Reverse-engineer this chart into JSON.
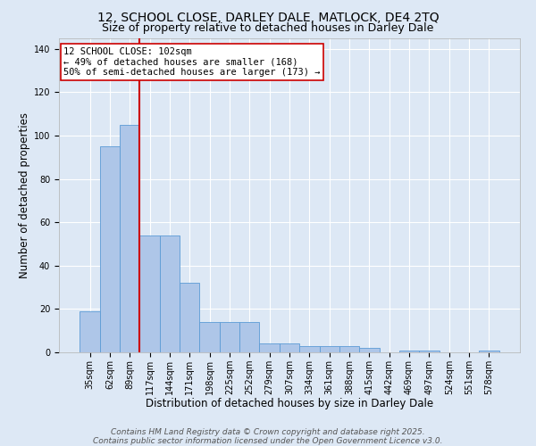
{
  "title_line1": "12, SCHOOL CLOSE, DARLEY DALE, MATLOCK, DE4 2TQ",
  "title_line2": "Size of property relative to detached houses in Darley Dale",
  "xlabel": "Distribution of detached houses by size in Darley Dale",
  "ylabel": "Number of detached properties",
  "categories": [
    "35sqm",
    "62sqm",
    "89sqm",
    "117sqm",
    "144sqm",
    "171sqm",
    "198sqm",
    "225sqm",
    "252sqm",
    "279sqm",
    "307sqm",
    "334sqm",
    "361sqm",
    "388sqm",
    "415sqm",
    "442sqm",
    "469sqm",
    "497sqm",
    "524sqm",
    "551sqm",
    "578sqm"
  ],
  "values": [
    19,
    95,
    105,
    54,
    54,
    32,
    14,
    14,
    14,
    4,
    4,
    3,
    3,
    3,
    2,
    0,
    1,
    1,
    0,
    0,
    1
  ],
  "bar_color": "#aec6e8",
  "bar_edge_color": "#5b9bd5",
  "bar_width": 1.0,
  "vline_x": 2.5,
  "vline_color": "#cc0000",
  "annotation_text": "12 SCHOOL CLOSE: 102sqm\n← 49% of detached houses are smaller (168)\n50% of semi-detached houses are larger (173) →",
  "annotation_box_color": "#ffffff",
  "annotation_box_edge": "#cc0000",
  "ylim": [
    0,
    145
  ],
  "yticks": [
    0,
    20,
    40,
    60,
    80,
    100,
    120,
    140
  ],
  "background_color": "#dde8f5",
  "grid_color": "#ffffff",
  "footer_line1": "Contains HM Land Registry data © Crown copyright and database right 2025.",
  "footer_line2": "Contains public sector information licensed under the Open Government Licence v3.0.",
  "title_fontsize": 10,
  "subtitle_fontsize": 9,
  "xlabel_fontsize": 8.5,
  "ylabel_fontsize": 8.5,
  "tick_fontsize": 7,
  "footer_fontsize": 6.5,
  "annotation_fontsize": 7.5
}
